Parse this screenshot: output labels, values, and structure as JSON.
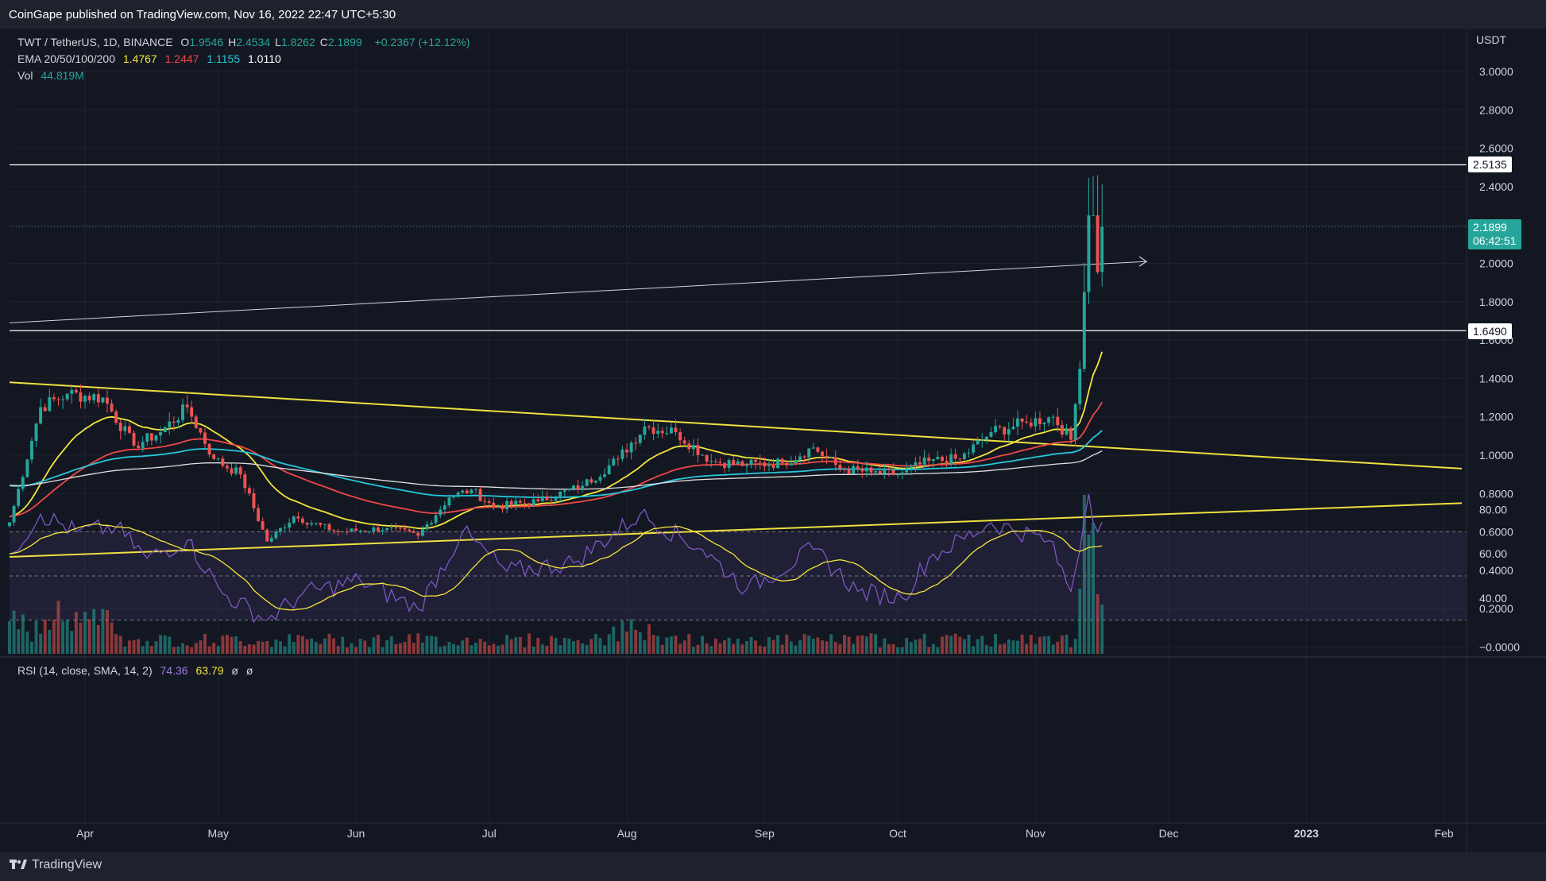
{
  "header": {
    "publisher": "CoinGape published on TradingView.com, Nov 16, 2022 22:47 UTC+5:30"
  },
  "legend": {
    "symbol": "TWT / TetherUS, 1D, BINANCE",
    "ohlc": [
      {
        "k": "O",
        "v": "1.9546"
      },
      {
        "k": "H",
        "v": "2.4534"
      },
      {
        "k": "L",
        "v": "1.8262"
      },
      {
        "k": "C",
        "v": "2.1899"
      }
    ],
    "change": "+0.2367 (+12.12%)",
    "ema_label": "EMA 20/50/100/200",
    "ema_values": [
      "1.4767",
      "1.2447",
      "1.1155",
      "1.0110"
    ],
    "vol_label": "Vol",
    "vol_value": "44.819M",
    "rsi_label": "RSI (14, close, SMA, 14, 2)",
    "rsi_value": "74.36",
    "rsi_sma_value": "63.79",
    "rsi_empty1": "ø",
    "rsi_empty2": "ø"
  },
  "price_axis": {
    "currency": "USDT",
    "ticks": [
      "3.0000",
      "2.8000",
      "2.6000",
      "2.4000",
      "2.2000",
      "2.0000",
      "1.8000",
      "1.6000",
      "1.4000",
      "1.2000",
      "1.0000",
      "0.8000",
      "0.6000",
      "0.4000",
      "0.2000",
      "−0.0000"
    ]
  },
  "rsi_axis": {
    "ticks": [
      "80.00",
      "60.00",
      "40.00"
    ]
  },
  "time_axis": {
    "labels": [
      "Apr",
      "May",
      "Jun",
      "Jul",
      "Aug",
      "Sep",
      "Oct",
      "Nov",
      "Dec",
      "2023",
      "Feb"
    ]
  },
  "tags": {
    "level_high": "2.5135",
    "last_price": "2.1899",
    "countdown": "06:42:51",
    "level_low": "1.6490"
  },
  "footer": {
    "brand": "TradingView"
  },
  "colors": {
    "up": "#26a69a",
    "down": "#ef5350",
    "ema20": "#f5e63b",
    "ema50": "#f04848",
    "ema100": "#26c6da",
    "ema200": "#e0e0e0",
    "trendline": "#f0e040",
    "rsi": "#7e57c2",
    "rsi_sma": "#f5e63b"
  },
  "chart_data": {
    "type": "candlestick",
    "symbol": "TWT / TetherUS",
    "timeframe": "1D",
    "y_range": [
      0,
      3.0
    ],
    "x_range": [
      "2022-03-15",
      "2023-02-05"
    ],
    "anchors": [
      {
        "date": "2022-03-15",
        "close": 0.65
      },
      {
        "date": "2022-03-22",
        "close": 1.25
      },
      {
        "date": "2022-03-28",
        "close": 1.32
      },
      {
        "date": "2022-04-05",
        "close": 1.3
      },
      {
        "date": "2022-04-12",
        "close": 1.05
      },
      {
        "date": "2022-04-18",
        "close": 1.12
      },
      {
        "date": "2022-04-24",
        "close": 1.25
      },
      {
        "date": "2022-04-30",
        "close": 0.98
      },
      {
        "date": "2022-05-06",
        "close": 0.9
      },
      {
        "date": "2022-05-12",
        "close": 0.55
      },
      {
        "date": "2022-05-18",
        "close": 0.68
      },
      {
        "date": "2022-05-28",
        "close": 0.6
      },
      {
        "date": "2022-06-08",
        "close": 0.62
      },
      {
        "date": "2022-06-15",
        "close": 0.58
      },
      {
        "date": "2022-06-22",
        "close": 0.78
      },
      {
        "date": "2022-06-27",
        "close": 0.82
      },
      {
        "date": "2022-07-02",
        "close": 0.73
      },
      {
        "date": "2022-07-12",
        "close": 0.76
      },
      {
        "date": "2022-07-22",
        "close": 0.84
      },
      {
        "date": "2022-07-30",
        "close": 0.98
      },
      {
        "date": "2022-08-05",
        "close": 1.15
      },
      {
        "date": "2022-08-12",
        "close": 1.12
      },
      {
        "date": "2022-08-20",
        "close": 0.97
      },
      {
        "date": "2022-08-28",
        "close": 0.95
      },
      {
        "date": "2022-09-05",
        "close": 0.96
      },
      {
        "date": "2022-09-12",
        "close": 1.04
      },
      {
        "date": "2022-09-18",
        "close": 0.93
      },
      {
        "date": "2022-09-25",
        "close": 0.91
      },
      {
        "date": "2022-10-01",
        "close": 0.9
      },
      {
        "date": "2022-10-08",
        "close": 0.97
      },
      {
        "date": "2022-10-15",
        "close": 0.98
      },
      {
        "date": "2022-10-22",
        "close": 1.12
      },
      {
        "date": "2022-10-30",
        "close": 1.17
      },
      {
        "date": "2022-11-05",
        "close": 1.2
      },
      {
        "date": "2022-11-09",
        "close": 1.08
      },
      {
        "date": "2022-11-11",
        "close": 1.45
      },
      {
        "date": "2022-11-12",
        "close": 1.85
      },
      {
        "date": "2022-11-13",
        "close": 2.25
      },
      {
        "date": "2022-11-14",
        "close": 2.25
      },
      {
        "date": "2022-11-15",
        "close": 1.9546
      },
      {
        "date": "2022-11-16",
        "close": 2.1899
      }
    ],
    "ema_last": {
      "ema20": 1.4767,
      "ema50": 1.2447,
      "ema100": 1.1155,
      "ema200": 1.011
    },
    "horizontal_levels": [
      2.5135,
      1.649
    ],
    "trendlines": [
      {
        "name": "upper",
        "from": {
          "date": "2022-03-15",
          "value": 1.38
        },
        "to": {
          "date": "2023-02-05",
          "value": 0.93
        }
      },
      {
        "name": "lower",
        "from": {
          "date": "2022-03-15",
          "value": 0.47
        },
        "to": {
          "date": "2023-02-05",
          "value": 0.75
        }
      },
      {
        "name": "ray",
        "from": {
          "date": "2022-03-15",
          "value": 1.69
        },
        "to": {
          "date": "2022-11-26",
          "value": 2.01
        }
      }
    ],
    "rsi": {
      "y_range": [
        25,
        90
      ],
      "upper_band": 70,
      "mid_band": 50,
      "lower_band": 30,
      "anchors": [
        {
          "date": "2022-03-15",
          "value": 60
        },
        {
          "date": "2022-03-22",
          "value": 78
        },
        {
          "date": "2022-03-30",
          "value": 70
        },
        {
          "date": "2022-04-08",
          "value": 72
        },
        {
          "date": "2022-04-15",
          "value": 58
        },
        {
          "date": "2022-04-24",
          "value": 66
        },
        {
          "date": "2022-05-02",
          "value": 42
        },
        {
          "date": "2022-05-12",
          "value": 30
        },
        {
          "date": "2022-05-20",
          "value": 42
        },
        {
          "date": "2022-06-02",
          "value": 48
        },
        {
          "date": "2022-06-15",
          "value": 35
        },
        {
          "date": "2022-06-25",
          "value": 70
        },
        {
          "date": "2022-07-05",
          "value": 52
        },
        {
          "date": "2022-07-20",
          "value": 56
        },
        {
          "date": "2022-08-04",
          "value": 78
        },
        {
          "date": "2022-08-18",
          "value": 62
        },
        {
          "date": "2022-08-28",
          "value": 44
        },
        {
          "date": "2022-09-12",
          "value": 62
        },
        {
          "date": "2022-09-22",
          "value": 43
        },
        {
          "date": "2022-10-02",
          "value": 40
        },
        {
          "date": "2022-10-08",
          "value": 58
        },
        {
          "date": "2022-10-22",
          "value": 74
        },
        {
          "date": "2022-11-04",
          "value": 66
        },
        {
          "date": "2022-11-09",
          "value": 43
        },
        {
          "date": "2022-11-13",
          "value": 87
        },
        {
          "date": "2022-11-15",
          "value": 70
        },
        {
          "date": "2022-11-16",
          "value": 74.36
        }
      ]
    }
  }
}
